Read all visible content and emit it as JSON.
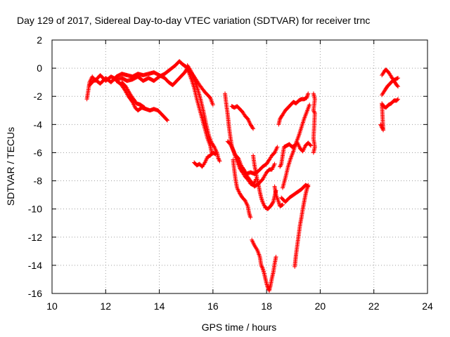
{
  "chart_data": {
    "type": "scatter",
    "title": "Day 129 of 2017, Sidereal Day-to-day VTEC variation (SDTVAR) for receiver trnc",
    "xlabel": "GPS time / hours",
    "ylabel": "SDTVAR / TECUs",
    "xlim": [
      10,
      24
    ],
    "ylim": [
      -16,
      2
    ],
    "xticks": [
      "10",
      "12",
      "14",
      "16",
      "18",
      "20",
      "22",
      "24"
    ],
    "yticks": [
      "2",
      "0",
      "-2",
      "-4",
      "-6",
      "-8",
      "-10",
      "-12",
      "-14",
      "-16"
    ],
    "grid": true,
    "marker": "+",
    "color": "#ff0000",
    "series": [
      {
        "points": [
          [
            11.3,
            -2.2
          ],
          [
            11.35,
            -1.6
          ],
          [
            11.4,
            -1.0
          ],
          [
            11.5,
            -0.6
          ],
          [
            11.6,
            -0.9
          ],
          [
            11.8,
            -0.5
          ],
          [
            12.0,
            -0.9
          ],
          [
            12.2,
            -0.6
          ],
          [
            12.4,
            -0.8
          ],
          [
            12.6,
            -0.7
          ],
          [
            12.8,
            -0.9
          ],
          [
            13.0,
            -0.8
          ],
          [
            13.2,
            -0.6
          ],
          [
            13.4,
            -0.9
          ],
          [
            13.6,
            -0.7
          ],
          [
            13.8,
            -0.9
          ],
          [
            14.0,
            -0.6
          ],
          [
            14.2,
            -0.4
          ],
          [
            14.4,
            -0.1
          ],
          [
            14.6,
            0.2
          ],
          [
            14.75,
            0.5
          ],
          [
            14.85,
            0.3
          ],
          [
            15.0,
            0.1
          ],
          [
            15.1,
            -0.3
          ],
          [
            15.2,
            -0.8
          ],
          [
            15.3,
            -1.4
          ],
          [
            15.4,
            -2.2
          ],
          [
            15.5,
            -2.9
          ],
          [
            15.6,
            -3.6
          ],
          [
            15.7,
            -4.3
          ],
          [
            15.8,
            -5.0
          ],
          [
            15.9,
            -5.5
          ],
          [
            15.95,
            -6.0
          ]
        ]
      },
      {
        "points": [
          [
            11.4,
            -1.2
          ],
          [
            11.6,
            -0.8
          ],
          [
            11.8,
            -1.1
          ],
          [
            12.0,
            -0.7
          ],
          [
            12.2,
            -1.0
          ],
          [
            12.4,
            -0.6
          ],
          [
            12.6,
            -0.4
          ],
          [
            12.8,
            -0.5
          ],
          [
            13.0,
            -0.6
          ],
          [
            13.2,
            -0.4
          ],
          [
            13.4,
            -0.5
          ],
          [
            13.6,
            -0.4
          ],
          [
            13.8,
            -0.3
          ],
          [
            14.0,
            -0.5
          ],
          [
            14.2,
            -0.7
          ],
          [
            14.35,
            -1.0
          ],
          [
            14.5,
            -1.2
          ],
          [
            14.65,
            -0.9
          ],
          [
            14.8,
            -0.6
          ],
          [
            14.95,
            -0.3
          ],
          [
            15.05,
            0.0
          ],
          [
            15.15,
            -0.2
          ],
          [
            15.3,
            -0.6
          ],
          [
            15.5,
            -1.2
          ],
          [
            15.7,
            -1.7
          ],
          [
            15.9,
            -2.1
          ],
          [
            16.0,
            -2.6
          ]
        ]
      },
      {
        "points": [
          [
            12.4,
            -0.9
          ],
          [
            12.55,
            -1.1
          ],
          [
            12.7,
            -1.5
          ],
          [
            12.85,
            -2.0
          ],
          [
            13.0,
            -2.4
          ],
          [
            13.1,
            -2.8
          ],
          [
            13.2,
            -3.0
          ],
          [
            13.35,
            -2.8
          ],
          [
            13.5,
            -2.9
          ],
          [
            13.65,
            -3.0
          ],
          [
            13.8,
            -2.9
          ],
          [
            13.95,
            -3.0
          ],
          [
            14.1,
            -3.3
          ],
          [
            14.2,
            -3.5
          ],
          [
            14.3,
            -3.7
          ]
        ]
      },
      {
        "points": [
          [
            12.6,
            -1.0
          ],
          [
            12.75,
            -1.3
          ],
          [
            12.9,
            -1.8
          ],
          [
            13.0,
            -2.1
          ],
          [
            13.15,
            -2.5
          ],
          [
            13.3,
            -2.6
          ],
          [
            13.45,
            -2.8
          ]
        ]
      },
      {
        "points": [
          [
            15.05,
            0.2
          ],
          [
            15.15,
            -0.1
          ],
          [
            15.25,
            -0.5
          ],
          [
            15.35,
            -1.0
          ],
          [
            15.45,
            -1.6
          ],
          [
            15.55,
            -2.3
          ],
          [
            15.65,
            -3.1
          ],
          [
            15.75,
            -4.0
          ],
          [
            15.85,
            -4.8
          ],
          [
            15.95,
            -5.3
          ],
          [
            16.05,
            -5.6
          ],
          [
            16.15,
            -6.0
          ],
          [
            16.2,
            -6.4
          ],
          [
            16.25,
            -6.6
          ]
        ]
      },
      {
        "points": [
          [
            15.3,
            -6.7
          ],
          [
            15.4,
            -6.9
          ],
          [
            15.5,
            -6.8
          ],
          [
            15.6,
            -7.0
          ],
          [
            15.7,
            -6.7
          ],
          [
            15.8,
            -6.3
          ],
          [
            15.9,
            -6.2
          ],
          [
            16.0,
            -6.0
          ],
          [
            16.1,
            -6.1
          ]
        ]
      },
      {
        "points": [
          [
            16.45,
            -1.8
          ],
          [
            16.5,
            -2.6
          ],
          [
            16.55,
            -3.3
          ],
          [
            16.6,
            -4.2
          ],
          [
            16.65,
            -4.9
          ],
          [
            16.7,
            -5.5
          ],
          [
            16.8,
            -6.1
          ],
          [
            16.9,
            -6.6
          ],
          [
            17.0,
            -7.1
          ],
          [
            17.1,
            -7.4
          ],
          [
            17.2,
            -7.7
          ],
          [
            17.3,
            -7.9
          ],
          [
            17.4,
            -8.2
          ],
          [
            17.5,
            -8.3
          ],
          [
            17.6,
            -7.9
          ]
        ]
      },
      {
        "points": [
          [
            16.7,
            -2.7
          ],
          [
            16.8,
            -2.8
          ],
          [
            16.9,
            -2.7
          ],
          [
            17.0,
            -2.9
          ],
          [
            17.1,
            -3.1
          ],
          [
            17.2,
            -3.4
          ],
          [
            17.3,
            -3.6
          ],
          [
            17.4,
            -4.0
          ],
          [
            17.5,
            -4.3
          ]
        ]
      },
      {
        "points": [
          [
            16.55,
            -5.2
          ],
          [
            16.65,
            -5.4
          ],
          [
            16.75,
            -5.8
          ],
          [
            16.85,
            -6.2
          ],
          [
            16.95,
            -6.4
          ],
          [
            17.05,
            -6.9
          ],
          [
            17.15,
            -7.2
          ],
          [
            17.25,
            -7.6
          ],
          [
            17.4,
            -8.0
          ],
          [
            17.55,
            -8.4
          ],
          [
            17.7,
            -8.2
          ],
          [
            17.85,
            -7.9
          ],
          [
            18.0,
            -7.4
          ],
          [
            18.1,
            -7.2
          ],
          [
            18.2,
            -7.2
          ],
          [
            18.3,
            -6.8
          ]
        ]
      },
      {
        "points": [
          [
            16.75,
            -6.5
          ],
          [
            16.8,
            -7.3
          ],
          [
            16.85,
            -8.0
          ],
          [
            16.9,
            -8.5
          ],
          [
            17.0,
            -8.9
          ],
          [
            17.1,
            -9.2
          ],
          [
            17.2,
            -9.4
          ],
          [
            17.3,
            -9.8
          ],
          [
            17.35,
            -10.3
          ],
          [
            17.4,
            -10.6
          ]
        ]
      },
      {
        "points": [
          [
            17.1,
            -7.1
          ],
          [
            17.25,
            -7.5
          ],
          [
            17.4,
            -7.4
          ],
          [
            17.55,
            -7.5
          ],
          [
            17.7,
            -7.3
          ],
          [
            17.85,
            -7.0
          ],
          [
            18.0,
            -6.8
          ],
          [
            18.1,
            -6.5
          ],
          [
            18.2,
            -6.2
          ],
          [
            18.3,
            -6.0
          ],
          [
            18.4,
            -5.6
          ]
        ]
      },
      {
        "points": [
          [
            17.5,
            -6.2
          ],
          [
            17.55,
            -6.9
          ],
          [
            17.6,
            -7.4
          ],
          [
            17.65,
            -7.9
          ],
          [
            17.7,
            -8.3
          ],
          [
            17.75,
            -8.8
          ],
          [
            17.8,
            -9.2
          ],
          [
            17.85,
            -9.5
          ],
          [
            17.95,
            -9.9
          ],
          [
            18.05,
            -10.0
          ],
          [
            18.15,
            -9.8
          ],
          [
            18.25,
            -9.5
          ],
          [
            18.3,
            -9.1
          ],
          [
            18.35,
            -8.7
          ]
        ]
      },
      {
        "points": [
          [
            18.3,
            -8.4
          ],
          [
            18.35,
            -9.0
          ],
          [
            18.45,
            -9.5
          ],
          [
            18.5,
            -9.8
          ],
          [
            18.6,
            -9.7
          ]
        ]
      },
      {
        "points": [
          [
            17.45,
            -12.2
          ],
          [
            17.55,
            -12.6
          ],
          [
            17.65,
            -12.9
          ],
          [
            17.75,
            -13.4
          ],
          [
            17.8,
            -14.0
          ],
          [
            17.85,
            -14.2
          ],
          [
            17.9,
            -14.5
          ],
          [
            17.95,
            -14.9
          ],
          [
            18.0,
            -15.3
          ],
          [
            18.05,
            -15.6
          ],
          [
            18.1,
            -15.8
          ],
          [
            18.15,
            -15.4
          ],
          [
            18.2,
            -14.9
          ],
          [
            18.25,
            -14.5
          ],
          [
            18.3,
            -13.9
          ],
          [
            18.35,
            -13.4
          ]
        ]
      },
      {
        "points": [
          [
            18.5,
            -7.0
          ],
          [
            18.55,
            -6.8
          ],
          [
            18.6,
            -6.2
          ],
          [
            18.65,
            -5.6
          ],
          [
            18.75,
            -5.5
          ],
          [
            18.85,
            -5.4
          ],
          [
            18.95,
            -5.6
          ],
          [
            19.05,
            -5.5
          ],
          [
            19.15,
            -5.3
          ],
          [
            19.25,
            -5.7
          ],
          [
            19.35,
            -5.9
          ],
          [
            19.45,
            -5.5
          ],
          [
            19.55,
            -5.3
          ],
          [
            19.65,
            -5.5
          ]
        ]
      },
      {
        "points": [
          [
            18.45,
            -4.0
          ],
          [
            18.5,
            -3.6
          ],
          [
            18.6,
            -3.3
          ],
          [
            18.7,
            -3.0
          ],
          [
            18.8,
            -2.8
          ],
          [
            18.9,
            -2.6
          ],
          [
            19.0,
            -2.4
          ],
          [
            19.1,
            -2.5
          ],
          [
            19.2,
            -2.3
          ],
          [
            19.3,
            -2.2
          ],
          [
            19.4,
            -2.2
          ],
          [
            19.5,
            -2.1
          ],
          [
            19.55,
            -1.8
          ]
        ]
      },
      {
        "points": [
          [
            18.55,
            -9.2
          ],
          [
            18.7,
            -9.5
          ],
          [
            18.85,
            -9.2
          ],
          [
            19.0,
            -9.0
          ],
          [
            19.15,
            -8.8
          ],
          [
            19.3,
            -8.6
          ],
          [
            19.45,
            -8.3
          ],
          [
            19.55,
            -8.4
          ]
        ]
      },
      {
        "points": [
          [
            18.6,
            -8.5
          ],
          [
            18.7,
            -7.8
          ],
          [
            18.8,
            -7.0
          ],
          [
            18.9,
            -6.4
          ],
          [
            19.0,
            -5.9
          ],
          [
            19.1,
            -5.3
          ],
          [
            19.2,
            -4.8
          ],
          [
            19.3,
            -4.2
          ],
          [
            19.4,
            -3.6
          ],
          [
            19.5,
            -3.1
          ],
          [
            19.6,
            -2.6
          ]
        ]
      },
      {
        "points": [
          [
            19.05,
            -14.1
          ],
          [
            19.1,
            -13.2
          ],
          [
            19.15,
            -12.5
          ],
          [
            19.2,
            -11.8
          ],
          [
            19.25,
            -11.1
          ],
          [
            19.3,
            -10.6
          ],
          [
            19.35,
            -10.0
          ],
          [
            19.4,
            -9.5
          ],
          [
            19.45,
            -9.0
          ],
          [
            19.5,
            -8.6
          ],
          [
            19.55,
            -8.3
          ]
        ]
      },
      {
        "points": [
          [
            19.75,
            -1.8
          ],
          [
            19.8,
            -2.2
          ],
          [
            19.75,
            -3.0
          ],
          [
            19.8,
            -3.2
          ],
          [
            19.75,
            -5.0
          ],
          [
            19.8,
            -5.6
          ],
          [
            19.75,
            -6.0
          ]
        ]
      },
      {
        "points": [
          [
            22.25,
            -4.0
          ],
          [
            22.3,
            -4.2
          ],
          [
            22.35,
            -4.4
          ],
          [
            22.3,
            -2.5
          ],
          [
            22.35,
            -2.7
          ],
          [
            22.45,
            -2.8
          ],
          [
            22.55,
            -2.6
          ],
          [
            22.65,
            -2.5
          ],
          [
            22.75,
            -2.3
          ],
          [
            22.85,
            -2.3
          ],
          [
            22.9,
            -2.2
          ]
        ]
      },
      {
        "points": [
          [
            22.3,
            -1.9
          ],
          [
            22.4,
            -1.6
          ],
          [
            22.5,
            -1.3
          ],
          [
            22.6,
            -1.1
          ],
          [
            22.7,
            -0.9
          ],
          [
            22.8,
            -0.8
          ],
          [
            22.9,
            -0.7
          ]
        ]
      },
      {
        "points": [
          [
            22.3,
            -0.5
          ],
          [
            22.4,
            -0.2
          ],
          [
            22.45,
            -0.1
          ],
          [
            22.55,
            -0.3
          ],
          [
            22.65,
            -0.6
          ],
          [
            22.75,
            -0.9
          ],
          [
            22.85,
            -1.2
          ],
          [
            22.9,
            -1.3
          ]
        ]
      }
    ]
  }
}
